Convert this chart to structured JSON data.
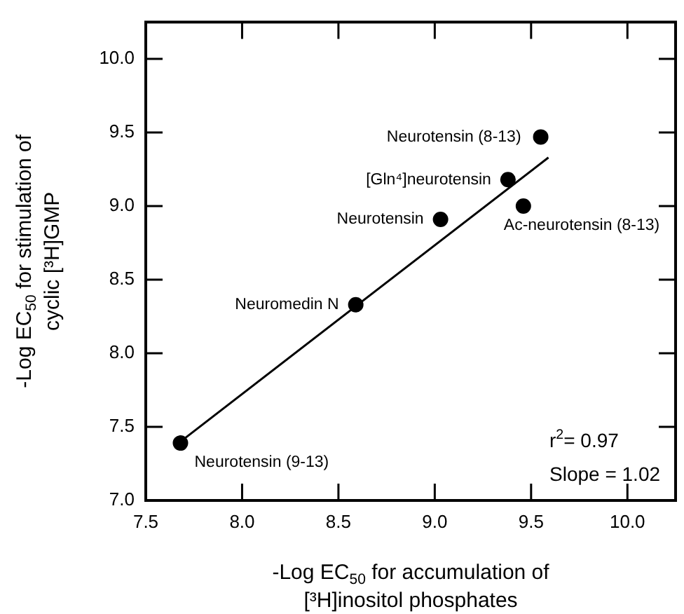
{
  "chart_data": {
    "type": "scatter",
    "xlabel": "-Log EC$_{50}$ for accumulation of\n[³H]inositol phosphates",
    "ylabel": "-Log EC$_{50}$ for stimulation of\ncyclic [³H]GMP",
    "xlim": [
      7.5,
      10.25
    ],
    "xticks": [
      {
        "value": 7.5,
        "label": "7.5"
      },
      {
        "value": 8,
        "label": "8.0"
      },
      {
        "value": 8.5,
        "label": "8.5"
      },
      {
        "value": 9,
        "label": "9.0"
      },
      {
        "value": 9.5,
        "label": "9.5"
      },
      {
        "value": 10,
        "label": "10.0"
      }
    ],
    "ylim": [
      7,
      10.25
    ],
    "yticks": [
      {
        "value": 7,
        "label": "7.0"
      },
      {
        "value": 7.5,
        "label": "7.5"
      },
      {
        "value": 8,
        "label": "8.0"
      },
      {
        "value": 8.5,
        "label": "8.5"
      },
      {
        "value": 9,
        "label": "9.0"
      },
      {
        "value": 9.5,
        "label": "9.5"
      },
      {
        "value": 10,
        "label": "10.0"
      }
    ],
    "grid": false,
    "legend": false,
    "marker": "circle",
    "series": [
      {
        "color": "#000000",
        "x": [
          9.55,
          9.38,
          9.03,
          9.46,
          8.59,
          7.68
        ],
        "values": [
          9.47,
          9.18,
          8.91,
          9.0,
          8.33,
          7.39
        ]
      },
      {
        "type": "line",
        "color": "#000000",
        "marker": "none",
        "line_style": "solid",
        "x": [
          7.7,
          9.59
        ],
        "values": [
          7.42,
          9.33
        ]
      }
    ],
    "annotations": [
      {
        "text": "Neurotensin (8-13)",
        "x": 9.55,
        "y": 9.47
      },
      {
        "text": "[Gln⁴]neurotensin",
        "x": 9.38,
        "y": 9.18
      },
      {
        "text": "Neurotensin",
        "x": 9.03,
        "y": 8.91
      },
      {
        "text": "Ac-neurotensin (8-13)",
        "x": 9.46,
        "y": 9.0
      },
      {
        "text": "Neuromedin N",
        "x": 8.59,
        "y": 8.33
      },
      {
        "text": "Neurotensin (9-13)",
        "x": 7.68,
        "y": 7.39
      },
      "r$^{2}$= 0.97",
      "Slope = 1.02"
    ]
  }
}
